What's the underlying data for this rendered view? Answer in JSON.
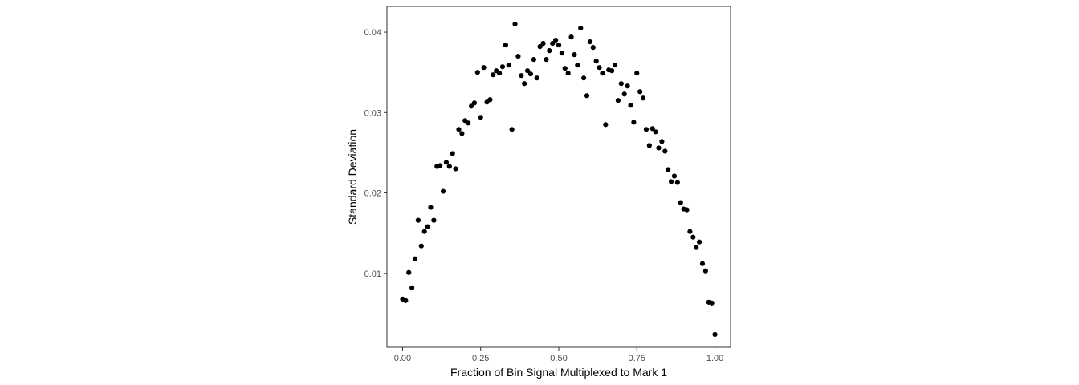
{
  "chart_data": {
    "type": "scatter",
    "title": "",
    "xlabel": "Fraction of Bin Signal Multiplexed to Mark 1",
    "ylabel": "Standard Deviation",
    "xlim": [
      -0.05,
      1.05
    ],
    "ylim": [
      0.0008,
      0.0432
    ],
    "x_ticks": [
      0.0,
      0.25,
      0.5,
      0.75,
      1.0
    ],
    "x_tick_labels": [
      "0.00",
      "0.25",
      "0.50",
      "0.75",
      "1.00"
    ],
    "y_ticks": [
      0.01,
      0.02,
      0.03,
      0.04
    ],
    "y_tick_labels": [
      "0.01",
      "0.02",
      "0.03",
      "0.04"
    ],
    "grid": false,
    "panel_border": true,
    "point_color": "#000000",
    "points": [
      {
        "x": 0.0,
        "y": 0.0068
      },
      {
        "x": 0.01,
        "y": 0.0066
      },
      {
        "x": 0.02,
        "y": 0.0101
      },
      {
        "x": 0.03,
        "y": 0.0082
      },
      {
        "x": 0.04,
        "y": 0.0118
      },
      {
        "x": 0.05,
        "y": 0.0166
      },
      {
        "x": 0.06,
        "y": 0.0134
      },
      {
        "x": 0.07,
        "y": 0.0152
      },
      {
        "x": 0.08,
        "y": 0.0158
      },
      {
        "x": 0.09,
        "y": 0.0182
      },
      {
        "x": 0.1,
        "y": 0.0166
      },
      {
        "x": 0.11,
        "y": 0.0233
      },
      {
        "x": 0.12,
        "y": 0.0234
      },
      {
        "x": 0.13,
        "y": 0.0202
      },
      {
        "x": 0.14,
        "y": 0.0238
      },
      {
        "x": 0.15,
        "y": 0.0233
      },
      {
        "x": 0.16,
        "y": 0.0249
      },
      {
        "x": 0.17,
        "y": 0.023
      },
      {
        "x": 0.18,
        "y": 0.0279
      },
      {
        "x": 0.19,
        "y": 0.0274
      },
      {
        "x": 0.2,
        "y": 0.029
      },
      {
        "x": 0.21,
        "y": 0.0287
      },
      {
        "x": 0.22,
        "y": 0.0308
      },
      {
        "x": 0.23,
        "y": 0.0312
      },
      {
        "x": 0.24,
        "y": 0.035
      },
      {
        "x": 0.25,
        "y": 0.0294
      },
      {
        "x": 0.26,
        "y": 0.0356
      },
      {
        "x": 0.27,
        "y": 0.0313
      },
      {
        "x": 0.28,
        "y": 0.0316
      },
      {
        "x": 0.29,
        "y": 0.0347
      },
      {
        "x": 0.3,
        "y": 0.0352
      },
      {
        "x": 0.31,
        "y": 0.0349
      },
      {
        "x": 0.32,
        "y": 0.0357
      },
      {
        "x": 0.33,
        "y": 0.0384
      },
      {
        "x": 0.34,
        "y": 0.0359
      },
      {
        "x": 0.35,
        "y": 0.0279
      },
      {
        "x": 0.36,
        "y": 0.041
      },
      {
        "x": 0.37,
        "y": 0.037
      },
      {
        "x": 0.38,
        "y": 0.0346
      },
      {
        "x": 0.39,
        "y": 0.0336
      },
      {
        "x": 0.4,
        "y": 0.0352
      },
      {
        "x": 0.41,
        "y": 0.0348
      },
      {
        "x": 0.42,
        "y": 0.0366
      },
      {
        "x": 0.43,
        "y": 0.0343
      },
      {
        "x": 0.44,
        "y": 0.0382
      },
      {
        "x": 0.45,
        "y": 0.0386
      },
      {
        "x": 0.46,
        "y": 0.0366
      },
      {
        "x": 0.47,
        "y": 0.0377
      },
      {
        "x": 0.48,
        "y": 0.0386
      },
      {
        "x": 0.49,
        "y": 0.039
      },
      {
        "x": 0.5,
        "y": 0.0384
      },
      {
        "x": 0.51,
        "y": 0.0374
      },
      {
        "x": 0.52,
        "y": 0.0355
      },
      {
        "x": 0.53,
        "y": 0.0349
      },
      {
        "x": 0.54,
        "y": 0.0394
      },
      {
        "x": 0.55,
        "y": 0.0372
      },
      {
        "x": 0.56,
        "y": 0.0359
      },
      {
        "x": 0.57,
        "y": 0.0405
      },
      {
        "x": 0.58,
        "y": 0.0343
      },
      {
        "x": 0.59,
        "y": 0.0321
      },
      {
        "x": 0.6,
        "y": 0.0388
      },
      {
        "x": 0.61,
        "y": 0.0381
      },
      {
        "x": 0.62,
        "y": 0.0364
      },
      {
        "x": 0.63,
        "y": 0.0356
      },
      {
        "x": 0.64,
        "y": 0.0349
      },
      {
        "x": 0.65,
        "y": 0.0285
      },
      {
        "x": 0.66,
        "y": 0.0353
      },
      {
        "x": 0.67,
        "y": 0.0352
      },
      {
        "x": 0.68,
        "y": 0.0359
      },
      {
        "x": 0.69,
        "y": 0.0315
      },
      {
        "x": 0.7,
        "y": 0.0336
      },
      {
        "x": 0.71,
        "y": 0.0323
      },
      {
        "x": 0.72,
        "y": 0.0333
      },
      {
        "x": 0.73,
        "y": 0.0309
      },
      {
        "x": 0.74,
        "y": 0.0288
      },
      {
        "x": 0.75,
        "y": 0.0349
      },
      {
        "x": 0.76,
        "y": 0.0326
      },
      {
        "x": 0.77,
        "y": 0.0318
      },
      {
        "x": 0.78,
        "y": 0.0279
      },
      {
        "x": 0.79,
        "y": 0.0259
      },
      {
        "x": 0.8,
        "y": 0.028
      },
      {
        "x": 0.81,
        "y": 0.0276
      },
      {
        "x": 0.82,
        "y": 0.0256
      },
      {
        "x": 0.83,
        "y": 0.0264
      },
      {
        "x": 0.84,
        "y": 0.0252
      },
      {
        "x": 0.85,
        "y": 0.0229
      },
      {
        "x": 0.86,
        "y": 0.0214
      },
      {
        "x": 0.87,
        "y": 0.0221
      },
      {
        "x": 0.88,
        "y": 0.0213
      },
      {
        "x": 0.89,
        "y": 0.0188
      },
      {
        "x": 0.9,
        "y": 0.018
      },
      {
        "x": 0.91,
        "y": 0.0179
      },
      {
        "x": 0.92,
        "y": 0.0152
      },
      {
        "x": 0.93,
        "y": 0.0145
      },
      {
        "x": 0.94,
        "y": 0.0132
      },
      {
        "x": 0.95,
        "y": 0.0139
      },
      {
        "x": 0.96,
        "y": 0.0112
      },
      {
        "x": 0.97,
        "y": 0.0103
      },
      {
        "x": 0.98,
        "y": 0.0064
      },
      {
        "x": 0.99,
        "y": 0.0063
      },
      {
        "x": 1.0,
        "y": 0.0024
      }
    ]
  }
}
